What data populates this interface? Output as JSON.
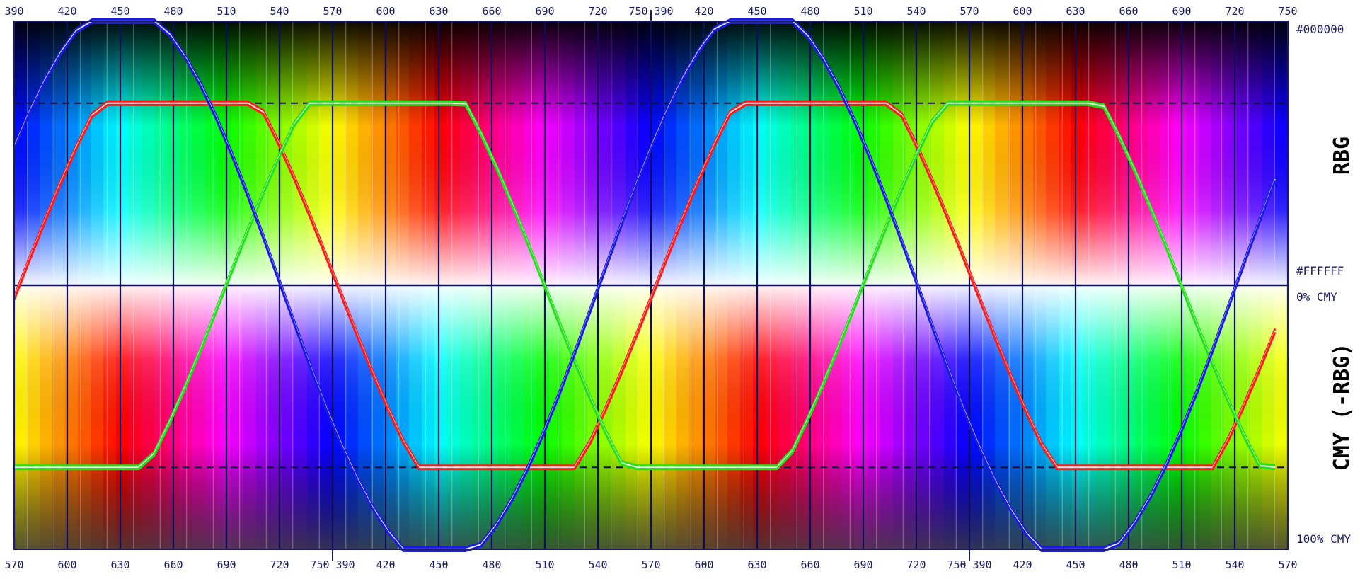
{
  "chart_data": {
    "type": "line",
    "top_axis": {
      "ticks": [
        "390",
        "420",
        "450",
        "480",
        "510",
        "540",
        "570",
        "600",
        "630",
        "660",
        "690",
        "720",
        "750",
        "390",
        "420",
        "450",
        "480",
        "510",
        "540",
        "570",
        "600",
        "630",
        "660",
        "690",
        "720",
        "750"
      ],
      "segments": [
        [
          390,
          750
        ],
        [
          390,
          750
        ]
      ]
    },
    "bottom_axis": {
      "ticks": [
        "570",
        "600",
        "630",
        "660",
        "690",
        "720",
        "750",
        "390",
        "420",
        "450",
        "480",
        "510",
        "540",
        "570",
        "600",
        "630",
        "660",
        "690",
        "720",
        "750",
        "390",
        "420",
        "450",
        "480",
        "510",
        "540",
        "570"
      ],
      "segments": [
        [
          570,
          750
        ],
        [
          390,
          750
        ],
        [
          390,
          570
        ]
      ]
    },
    "right_labels": {
      "top": "#000000",
      "mid_upper": "#FFFFFF",
      "mid_lower": "0% CMY",
      "bottom": "100% CMY",
      "section_upper": "RBG",
      "section_lower": "CMY (-RBG)"
    },
    "ylim": [
      -1.45,
      1.45
    ],
    "reference_lines": {
      "solid": [
        0
      ],
      "dashed": [
        1,
        -1
      ]
    },
    "colors": {
      "red": "#ff1a1a",
      "green": "#22e01a",
      "blue": "#1a1ae6",
      "grid": "#0d0d5e",
      "frame": "#1b1b6b"
    },
    "series": [
      {
        "color": "red",
        "peaks": [
          [
            1.0,
            -1.0,
            1.0,
            -1.0
          ],
          [
            0.99,
            -1.0,
            1.0,
            -0.99
          ]
        ]
      },
      {
        "color": "green",
        "peaks": [
          [
            -1.0,
            1.0,
            -1.0,
            1.0,
            -1.0
          ],
          [
            -0.99,
            1.0,
            -1.0,
            1.0,
            -0.99
          ]
        ]
      },
      {
        "color": "blue",
        "peaks": [
          [
            1.45,
            -1.45,
            1.45,
            -1.45
          ],
          [
            1.44,
            -1.45,
            1.45,
            -1.44
          ]
        ]
      }
    ],
    "grid": true
  }
}
